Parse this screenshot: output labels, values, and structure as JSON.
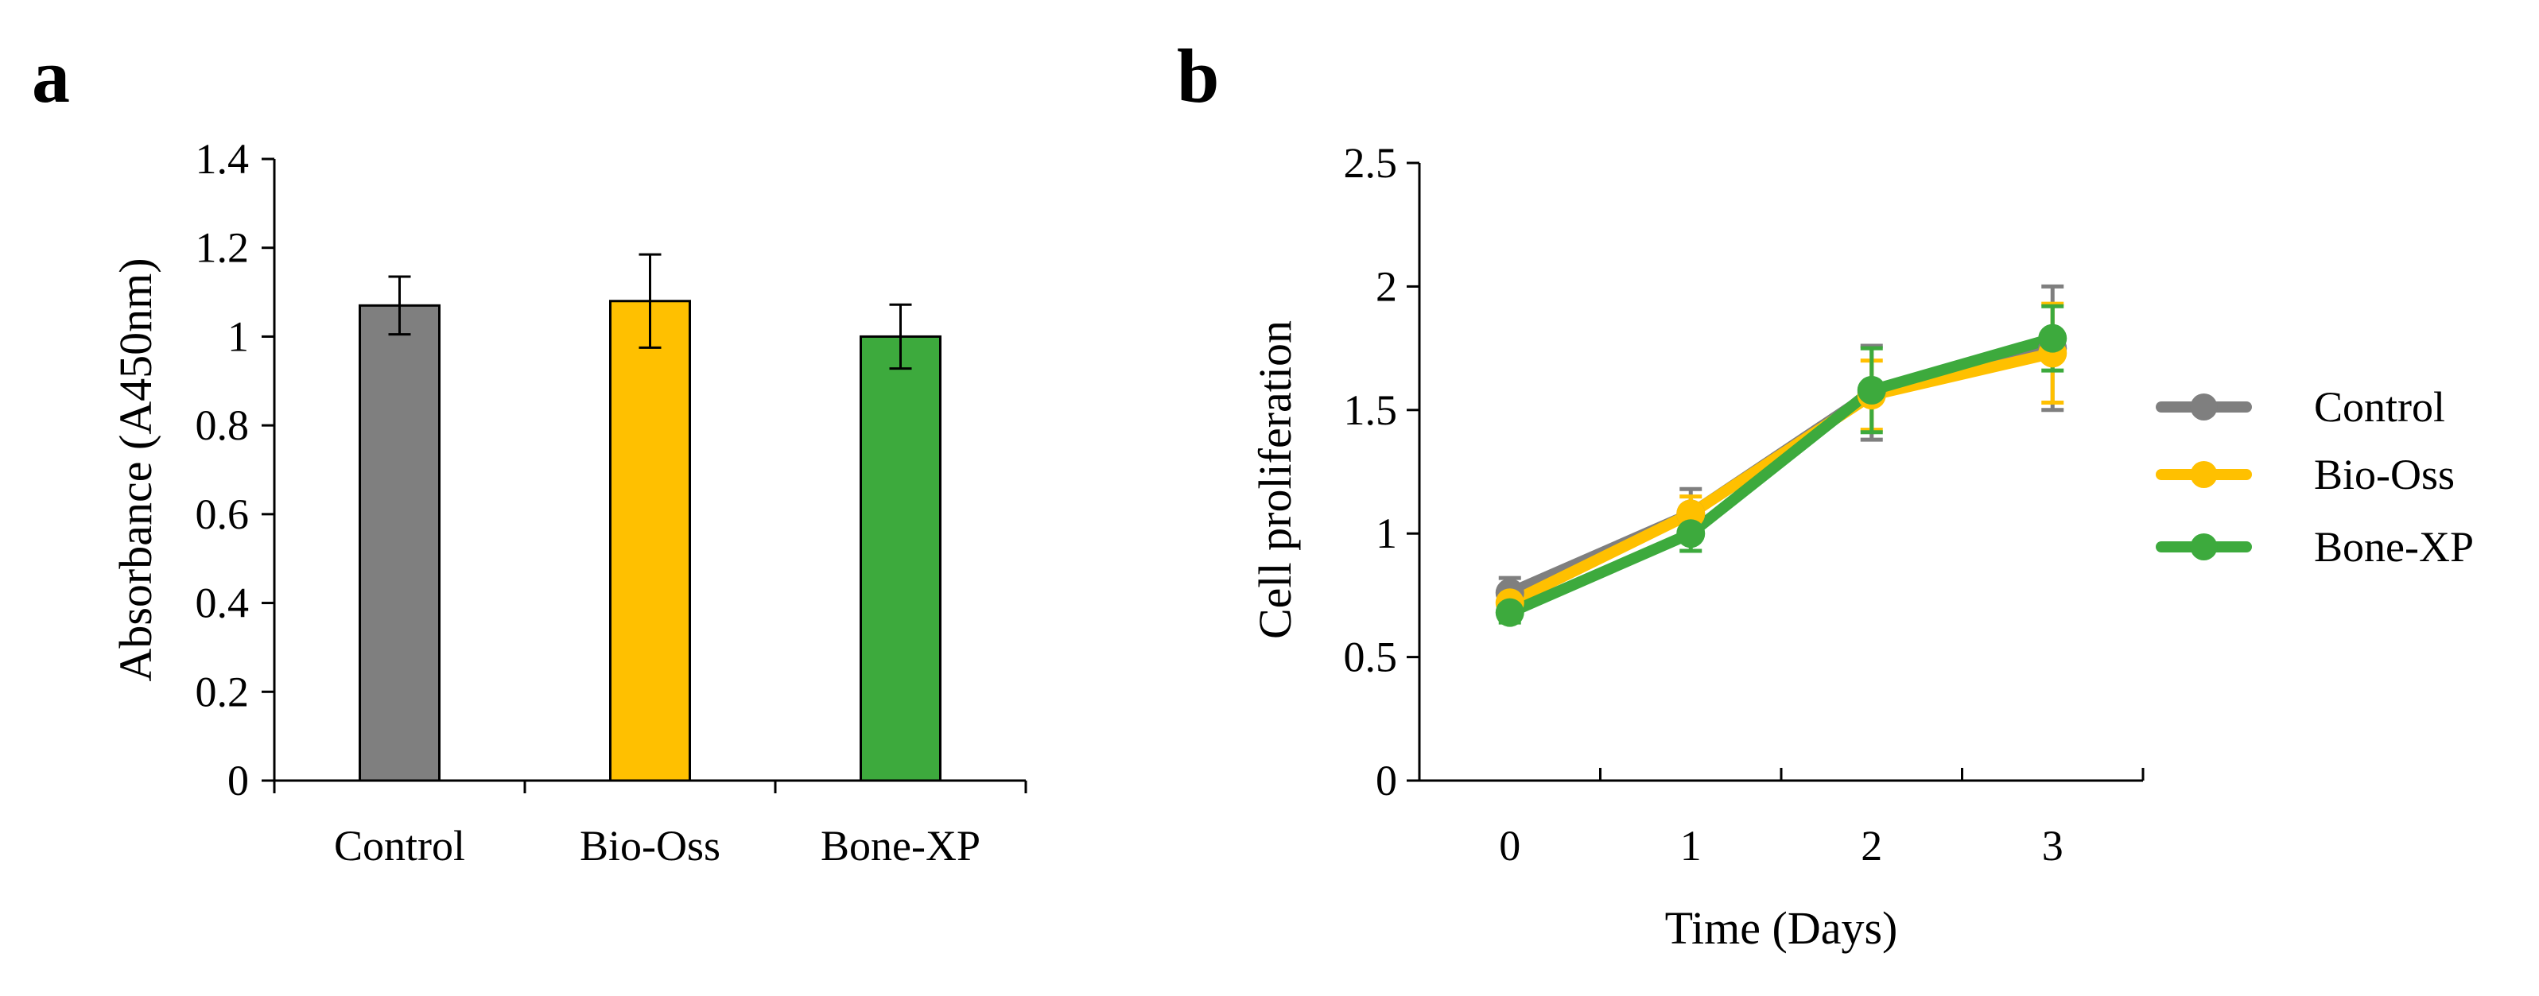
{
  "panels": {
    "a": {
      "letter": "a"
    },
    "b": {
      "letter": "b"
    }
  },
  "colors": {
    "control": "#7f7f7f",
    "bio_oss": "#ffc000",
    "bone_xp": "#3daa3d",
    "axis": "#000000"
  },
  "chart_data": [
    {
      "panel": "a",
      "type": "bar",
      "title": "",
      "xlabel": "",
      "ylabel": "Absorbance (A450nm)",
      "ylim": [
        0,
        1.4
      ],
      "yticks": [
        0,
        0.2,
        0.4,
        0.6,
        0.8,
        1,
        1.2,
        1.4
      ],
      "ytick_labels": [
        "0",
        "0.2",
        "0.4",
        "0.6",
        "0.8",
        "1",
        "1.2",
        "1.4"
      ],
      "categories": [
        "Control",
        "Bio-Oss",
        "Bone-XP"
      ],
      "values": [
        1.07,
        1.08,
        1.0
      ],
      "errors": [
        0.065,
        0.105,
        0.072
      ],
      "colors": [
        "#7f7f7f",
        "#ffc000",
        "#3daa3d"
      ],
      "grid": false
    },
    {
      "panel": "b",
      "type": "line",
      "title": "",
      "xlabel": "Time (Days)",
      "ylabel": "Cell proliferation",
      "x": [
        0,
        1,
        2,
        3
      ],
      "x_tick_labels": [
        "0",
        "1",
        "2",
        "3"
      ],
      "ylim": [
        0,
        2.5
      ],
      "yticks": [
        0,
        0.5,
        1,
        1.5,
        2,
        2.5
      ],
      "ytick_labels": [
        "0",
        "0.5",
        "1",
        "1.5",
        "2",
        "2.5"
      ],
      "legend_position": "right",
      "grid": false,
      "series": [
        {
          "name": "Control",
          "color": "#7f7f7f",
          "values": [
            0.76,
            1.08,
            1.57,
            1.75
          ],
          "errors": [
            0.06,
            0.1,
            0.19,
            0.25
          ]
        },
        {
          "name": "Bio-Oss",
          "color": "#ffc000",
          "values": [
            0.72,
            1.08,
            1.56,
            1.73
          ],
          "errors": [
            0.05,
            0.07,
            0.14,
            0.2
          ]
        },
        {
          "name": "Bone-XP",
          "color": "#3daa3d",
          "values": [
            0.68,
            1.0,
            1.58,
            1.79
          ],
          "errors": [
            0.04,
            0.07,
            0.17,
            0.13
          ]
        }
      ]
    }
  ]
}
